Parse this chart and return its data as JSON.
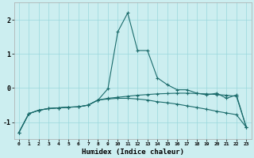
{
  "xlabel": "Humidex (Indice chaleur)",
  "background_color": "#cceef0",
  "line_color": "#1a6b6b",
  "grid_color": "#99d8dc",
  "x": [
    0,
    1,
    2,
    3,
    4,
    5,
    6,
    7,
    8,
    9,
    10,
    11,
    12,
    13,
    14,
    15,
    16,
    17,
    18,
    19,
    20,
    21,
    22,
    23
  ],
  "series1": [
    -1.3,
    -0.75,
    -0.65,
    -0.6,
    -0.58,
    -0.56,
    -0.55,
    -0.5,
    -0.35,
    -0.02,
    1.65,
    2.2,
    1.1,
    1.1,
    0.3,
    0.1,
    -0.05,
    -0.05,
    -0.15,
    -0.2,
    -0.15,
    -0.3,
    -0.2,
    -1.15
  ],
  "series2": [
    -1.3,
    -0.75,
    -0.65,
    -0.6,
    -0.58,
    -0.56,
    -0.55,
    -0.5,
    -0.35,
    -0.32,
    -0.3,
    -0.3,
    -0.32,
    -0.35,
    -0.4,
    -0.43,
    -0.47,
    -0.52,
    -0.57,
    -0.62,
    -0.68,
    -0.73,
    -0.78,
    -1.15
  ],
  "series3": [
    -1.3,
    -0.75,
    -0.65,
    -0.6,
    -0.58,
    -0.56,
    -0.55,
    -0.5,
    -0.35,
    -0.3,
    -0.27,
    -0.24,
    -0.21,
    -0.19,
    -0.17,
    -0.16,
    -0.15,
    -0.15,
    -0.16,
    -0.17,
    -0.19,
    -0.21,
    -0.24,
    -1.15
  ],
  "ylim": [
    -1.5,
    2.5
  ],
  "yticks": [
    -1,
    0,
    1,
    2
  ],
  "xlim": [
    -0.5,
    23.5
  ]
}
